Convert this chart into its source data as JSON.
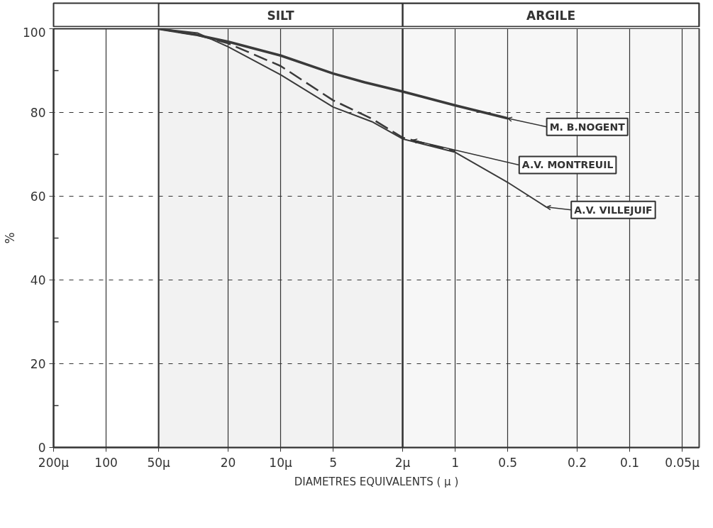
{
  "chart_data": {
    "type": "line",
    "xlabel": "DIAMETRES EQUIVALENTS ( µ )",
    "ylabel": "%",
    "xlim": [
      200,
      0.04
    ],
    "ylim": [
      0,
      100
    ],
    "xticks": [
      {
        "value": 200,
        "label": "200µ"
      },
      100,
      {
        "value": 50,
        "label": "50µ"
      },
      20,
      {
        "value": 10,
        "label": "10µ"
      },
      5,
      {
        "value": 2,
        "label": "2µ"
      },
      1,
      0.5,
      0.2,
      0.1,
      {
        "value": 0.05,
        "label": "0.05µ"
      }
    ],
    "yticks": [
      0,
      {
        "value": 10,
        "label": null
      },
      20,
      {
        "value": 30,
        "label": null
      },
      40,
      {
        "value": 50,
        "label": null
      },
      60,
      {
        "value": 70,
        "label": null
      },
      80,
      {
        "value": 90,
        "label": null
      },
      100
    ],
    "grid": true,
    "marker": "none",
    "log": "x",
    "bands": [
      {
        "axis": "x",
        "from": 50,
        "to": 2,
        "label": "SILT",
        "color": "#f2f2f2"
      },
      {
        "axis": "x",
        "from": 2,
        "to": 0.04,
        "label": "ARGILE",
        "color": "#f7f7f7"
      }
    ],
    "series": [
      {
        "color": "#3a3a3a",
        "line_style": "solid",
        "x": [
          50,
          30,
          20,
          10,
          5,
          3.3,
          2,
          1,
          0.5
        ],
        "values": [
          100,
          98.5,
          96.9,
          93.6,
          89.3,
          87.2,
          85.0,
          81.7,
          78.6
        ]
      },
      {
        "color": "#3a3a3a",
        "line_style": "dashed",
        "x": [
          50,
          30,
          20,
          10,
          5,
          3,
          2,
          1
        ],
        "values": [
          100,
          98.5,
          96.5,
          91.1,
          82.9,
          78.5,
          74.0,
          70.7
        ]
      },
      {
        "color": "#3a3a3a",
        "line_style": "solid",
        "x": [
          50,
          30,
          20,
          10,
          5,
          3,
          2,
          1,
          0.5,
          0.3
        ],
        "values": [
          100,
          99,
          95.7,
          89.0,
          81.3,
          77.8,
          73.7,
          70.5,
          63.3,
          57.4
        ]
      }
    ],
    "annotations": [
      {
        "text": "M. B.NOGENT",
        "x": 0.5,
        "y": 78.6
      },
      {
        "text": "A.V. MONTREUIL",
        "x": 1.75,
        "y": 73.4
      },
      {
        "text": "A.V. VILLEJUIF",
        "x": 0.3,
        "y": 57.4
      }
    ]
  }
}
